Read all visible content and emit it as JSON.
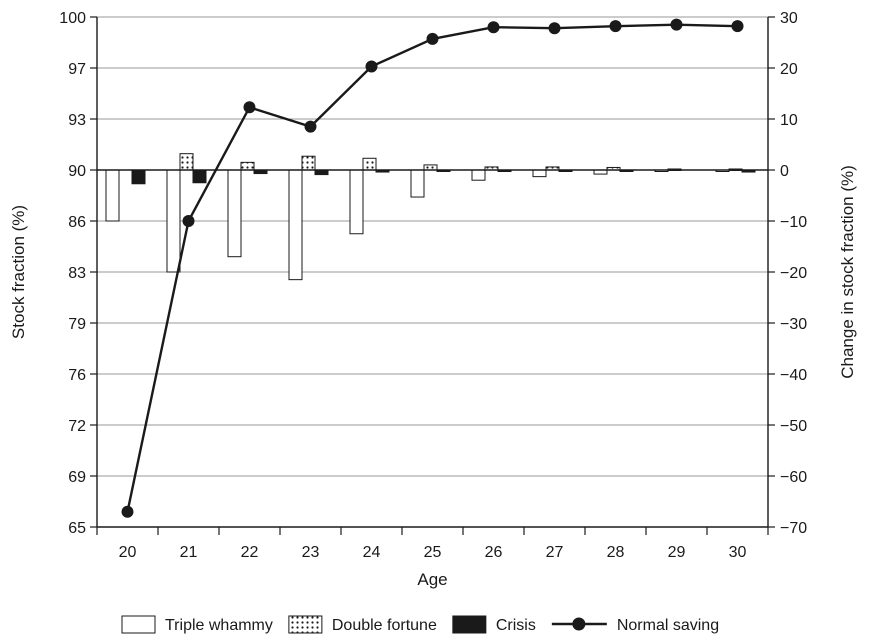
{
  "chart_data": {
    "type": "bar+line",
    "xlabel": "Age",
    "ylabel_left": "Stock fraction (%)",
    "ylabel_right": "Change in stock fraction (%)",
    "categories": [
      "20",
      "21",
      "22",
      "23",
      "24",
      "25",
      "26",
      "27",
      "28",
      "29",
      "30"
    ],
    "left_axis": {
      "range": [
        65,
        100
      ],
      "tick_labels": [
        "65",
        "69",
        "72",
        "76",
        "79",
        "83",
        "86",
        "90",
        "93",
        "97",
        "100"
      ]
    },
    "right_axis": {
      "range": [
        -70,
        30
      ],
      "tick_labels": [
        "−70",
        "−60",
        "−50",
        "−40",
        "−30",
        "−20",
        "−10",
        "0",
        "10",
        "20",
        "30"
      ],
      "tick_values": [
        -70,
        -60,
        -50,
        -40,
        -30,
        -20,
        -10,
        0,
        10,
        20,
        30
      ]
    },
    "grid": "horizontal",
    "legend_position": "bottom",
    "series": [
      {
        "name": "Triple whammy",
        "kind": "bar",
        "pattern": "white",
        "values": [
          -10,
          -20,
          -17,
          -21.5,
          -12.5,
          -5.3,
          -2,
          -1.3,
          -0.8,
          -0.2,
          -0.2
        ]
      },
      {
        "name": "Double fortune",
        "kind": "bar",
        "pattern": "dotted",
        "values": [
          0,
          3.2,
          1.5,
          2.7,
          2.3,
          1.0,
          0.6,
          0.6,
          0.5,
          0.2,
          0.2
        ]
      },
      {
        "name": "Crisis",
        "kind": "bar",
        "pattern": "black",
        "values": [
          -2.7,
          -2.5,
          -0.7,
          -0.9,
          -0.4,
          -0.2,
          -0.1,
          -0.1,
          -0.1,
          0,
          -0.4
        ]
      },
      {
        "name": "Normal saving",
        "kind": "line",
        "color": "#1a1a1a",
        "values": [
          -67,
          -10,
          12.3,
          8.5,
          20.3,
          25.7,
          28,
          27.8,
          28.2,
          28.5,
          28.2
        ]
      }
    ]
  }
}
